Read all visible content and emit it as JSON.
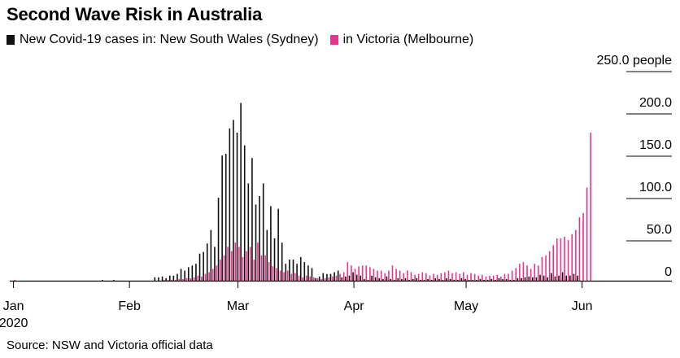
{
  "title": "Second Wave Risk in Australia",
  "legend": {
    "nsw_label": "New Covid-19 cases in: New South Wales (Sydney)",
    "vic_label": "in Victoria (Melbourne)"
  },
  "source": "Source: NSW and Victoria official data",
  "colors": {
    "nsw": "#111111",
    "vic": "#e8358c",
    "grid": "#000000"
  },
  "chart_data": {
    "type": "bar",
    "title": "Second Wave Risk in Australia",
    "ylabel": "people",
    "ylim": [
      0,
      250
    ],
    "y_ticks": [
      {
        "value": 0,
        "label": "0"
      },
      {
        "value": 50,
        "label": "50.0"
      },
      {
        "value": 100,
        "label": "100.0"
      },
      {
        "value": 150,
        "label": "150.0"
      },
      {
        "value": 200,
        "label": "200.0"
      },
      {
        "value": 250,
        "label": "250.0 people"
      }
    ],
    "x_ticks": [
      {
        "date": "2020-01-01",
        "label": "Jan",
        "sublabel": "2020"
      },
      {
        "date": "2020-02-01",
        "label": "Feb",
        "sublabel": ""
      },
      {
        "date": "2020-03-01",
        "label": "Mar",
        "sublabel": ""
      },
      {
        "date": "2020-04-01",
        "label": "Apr",
        "sublabel": ""
      },
      {
        "date": "2020-05-01",
        "label": "May",
        "sublabel": ""
      },
      {
        "date": "2020-06-01",
        "label": "Jun",
        "sublabel": ""
      }
    ],
    "x_range": [
      "2019-12-31",
      "2020-06-25"
    ],
    "series": [
      {
        "name": "New South Wales (Sydney)",
        "start_date": "2020-01-01",
        "values": [
          0,
          0,
          0,
          0,
          0,
          0,
          0,
          0,
          0,
          0,
          0,
          0,
          0,
          0,
          0,
          0,
          0,
          0,
          0,
          0,
          0,
          0,
          0,
          0,
          1,
          0,
          0,
          1,
          0,
          0,
          0,
          0,
          0,
          0,
          0,
          0,
          0,
          0,
          4,
          4,
          5,
          3,
          6,
          6,
          8,
          14,
          12,
          16,
          18,
          20,
          32,
          34,
          44,
          60,
          40,
          98,
          148,
          150,
          180,
          190,
          175,
          210,
          160,
          115,
          145,
          90,
          100,
          115,
          60,
          88,
          50,
          85,
          45,
          20,
          25,
          25,
          20,
          28,
          22,
          18,
          15,
          3,
          5,
          9,
          8,
          8,
          10,
          12,
          4,
          5,
          6,
          10,
          7,
          6,
          2,
          1,
          6,
          4,
          3,
          2,
          5,
          2,
          1,
          3,
          2,
          3,
          1,
          2,
          3,
          1,
          1,
          2,
          1,
          3,
          2,
          1,
          3,
          2,
          1,
          1,
          3,
          2,
          1,
          1,
          1,
          2,
          1,
          1,
          2,
          1,
          3,
          2,
          2,
          1,
          1,
          3,
          3,
          4,
          5,
          4,
          4,
          7,
          6,
          4,
          9,
          5,
          6,
          10,
          6,
          6,
          8,
          6
        ],
        "values_note": ""
      },
      {
        "name": "Victoria (Melbourne)",
        "start_date": "2020-01-01",
        "values": [
          1,
          0,
          0,
          0,
          0,
          0,
          0,
          0,
          0,
          0,
          0,
          0,
          0,
          0,
          0,
          0,
          0,
          0,
          0,
          0,
          0,
          0,
          0,
          0,
          0,
          0,
          0,
          0,
          0,
          0,
          0,
          0,
          0,
          0,
          0,
          0,
          0,
          0,
          0,
          0,
          1,
          1,
          1,
          1,
          2,
          2,
          3,
          3,
          4,
          6,
          5,
          8,
          10,
          14,
          18,
          25,
          30,
          40,
          35,
          45,
          40,
          28,
          35,
          40,
          25,
          45,
          30,
          30,
          22,
          17,
          15,
          12,
          10,
          12,
          8,
          9,
          6,
          4,
          6,
          5,
          4,
          3,
          2,
          3,
          4,
          5,
          6,
          8,
          10,
          22,
          18,
          14,
          17,
          18,
          18,
          16,
          14,
          12,
          12,
          9,
          12,
          18,
          14,
          12,
          9,
          12,
          10,
          7,
          8,
          10,
          9,
          6,
          8,
          7,
          9,
          10,
          12,
          9,
          10,
          8,
          10,
          7,
          9,
          8,
          6,
          7,
          5,
          6,
          6,
          7,
          5,
          8,
          8,
          12,
          15,
          20,
          22,
          18,
          14,
          20,
          18,
          28,
          30,
          35,
          42,
          50,
          50,
          52,
          48,
          55,
          60,
          75,
          80,
          110,
          175
        ],
        "values_note": ""
      }
    ]
  }
}
